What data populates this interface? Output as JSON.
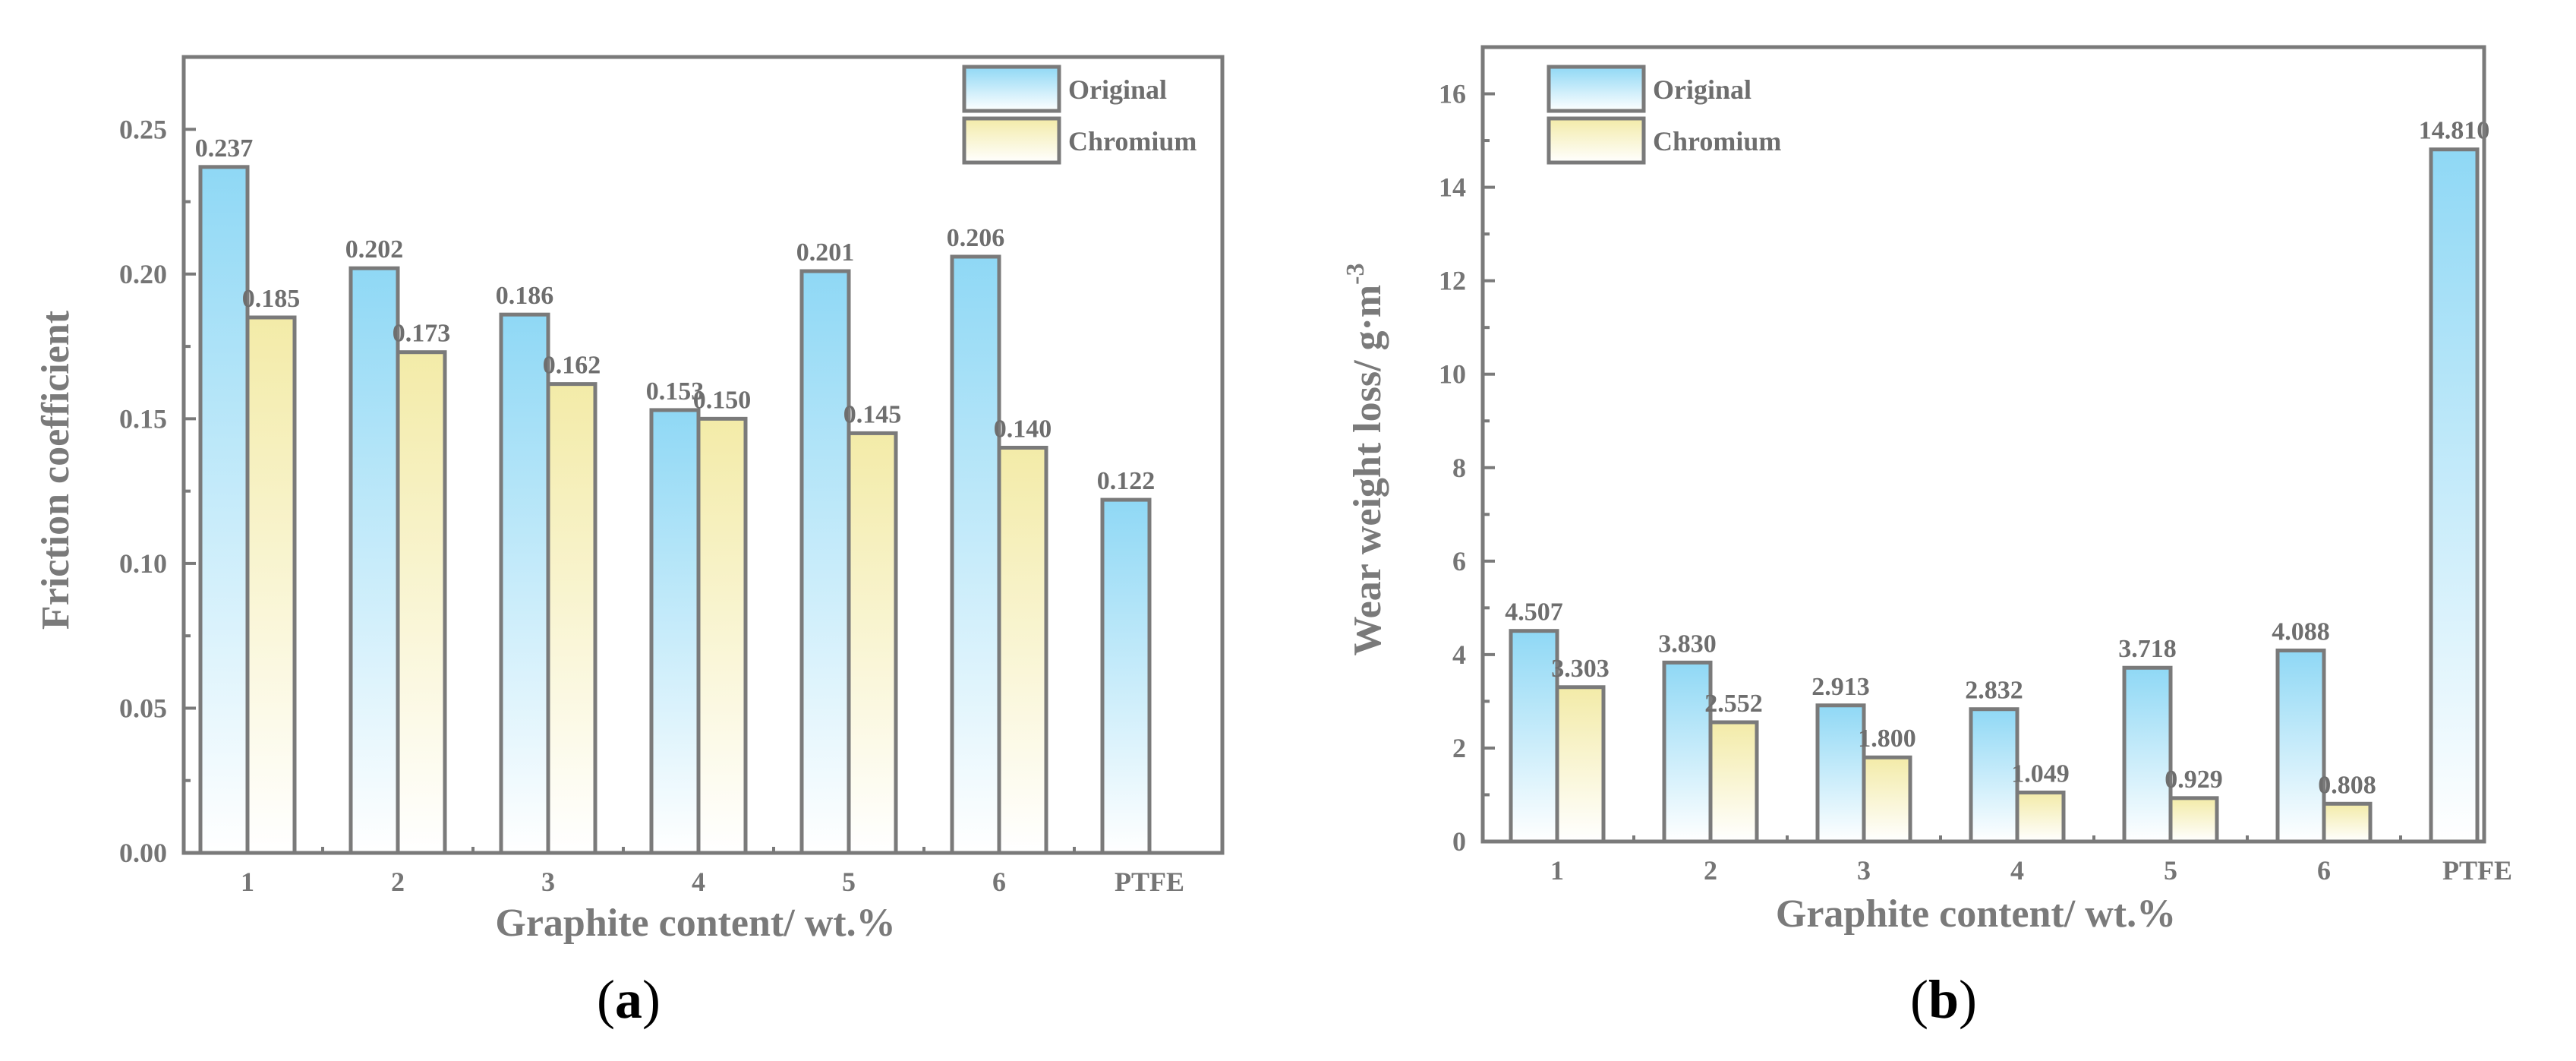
{
  "colors": {
    "frame": "#7a7a7a",
    "original_top": "#8fd8f5",
    "chromium_top": "#f3eba8",
    "bar_bottom": "#ffffff"
  },
  "chart_data": [
    {
      "panel": "(a)",
      "panel_letter": "a",
      "type": "bar",
      "categories": [
        "1",
        "2",
        "3",
        "4",
        "5",
        "6",
        "PTFE"
      ],
      "series": [
        {
          "name": "Original",
          "values": [
            0.237,
            0.202,
            0.186,
            0.153,
            0.201,
            0.206,
            0.122
          ],
          "labels": [
            "0.237",
            "0.202",
            "0.186",
            "0.153",
            "0.201",
            "0.206",
            "0.122"
          ]
        },
        {
          "name": "Chromium",
          "values": [
            0.185,
            0.173,
            0.162,
            0.15,
            0.145,
            0.14,
            null
          ],
          "labels": [
            "0.185",
            "0.173",
            "0.162",
            "0.150",
            "0.145",
            "0.140",
            null
          ]
        }
      ],
      "xlabel": "Graphite content/ wt.%",
      "ylabel": "Friction coefficient",
      "ylabel_sup": "",
      "ylim": [
        0,
        0.275
      ],
      "yticks": [
        0,
        0.05,
        0.1,
        0.15,
        0.2,
        0.25
      ],
      "ytick_labels": [
        "0.00",
        "0.05",
        "0.10",
        "0.15",
        "0.20",
        "0.25"
      ],
      "legend_position": "top-right",
      "grid": false
    },
    {
      "panel": "(b)",
      "panel_letter": "b",
      "type": "bar",
      "categories": [
        "1",
        "2",
        "3",
        "4",
        "5",
        "6",
        "PTFE"
      ],
      "series": [
        {
          "name": "Original",
          "values": [
            4.507,
            3.83,
            2.913,
            2.832,
            3.718,
            4.088,
            14.81
          ],
          "labels": [
            "4.507",
            "3.830",
            "2.913",
            "2.832",
            "3.718",
            "4.088",
            "14.810"
          ]
        },
        {
          "name": "Chromium",
          "values": [
            3.303,
            2.552,
            1.8,
            1.049,
            0.929,
            0.808,
            null
          ],
          "labels": [
            "3.303",
            "2.552",
            "1.800",
            "1.049",
            "0.929",
            "0.808",
            null
          ]
        }
      ],
      "xlabel": "Graphite content/ wt.%",
      "ylabel": "Wear weight loss/ g·m",
      "ylabel_sup": "-3",
      "ylim": [
        0,
        17
      ],
      "yticks": [
        0,
        2,
        4,
        6,
        8,
        10,
        12,
        14,
        16
      ],
      "ytick_labels": [
        "0",
        "2",
        "4",
        "6",
        "8",
        "10",
        "12",
        "14",
        "16"
      ],
      "legend_position": "top-left",
      "grid": false
    }
  ]
}
